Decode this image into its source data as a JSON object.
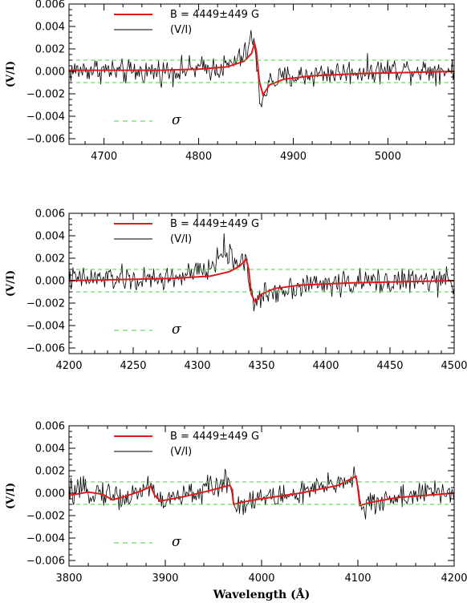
{
  "chart_data": [
    {
      "type": "line",
      "xlim": [
        4663,
        5070
      ],
      "ylim": [
        -0.0065,
        0.006
      ],
      "x_ticks": [
        4700,
        4800,
        4900,
        5000
      ],
      "x_tick_labels": [
        "4700",
        "4800",
        "4900",
        "5000"
      ],
      "y_ticks": [
        -0.006,
        -0.004,
        -0.002,
        0.0,
        0.002,
        0.004,
        0.006
      ],
      "y_tick_labels": [
        "−0.006",
        "−0.004",
        "−0.002",
        "0.000",
        "0.002",
        "0.004",
        "0.006"
      ],
      "ylabel": "(V/I)",
      "xlabel": "",
      "legend": {
        "model_label": "B = 4449±449 G",
        "observed_label": "(V/I)",
        "sigma_label": "σ"
      },
      "sigma": 0.001,
      "series": [
        {
          "name": "(V/I)",
          "color": "#000000",
          "x": [
            4663,
            4690,
            4720,
            4760,
            4800,
            4830,
            4850,
            4856,
            4859,
            4862,
            4866,
            4870,
            4876,
            4890,
            4930,
            4970,
            5020,
            5070
          ],
          "values": [
            0.0,
            0.0002,
            -0.0001,
            0.0,
            0.0002,
            0.0004,
            0.0015,
            0.0031,
            0.0024,
            -0.0005,
            -0.0029,
            -0.0018,
            -0.0009,
            -0.0006,
            -0.0002,
            0.0,
            0.0002,
            0.0001
          ]
        },
        {
          "name": "B = 4449±449 G",
          "color": "#e0191b",
          "x": [
            4663,
            4700,
            4760,
            4800,
            4830,
            4848,
            4856,
            4859,
            4861,
            4864,
            4868,
            4875,
            4890,
            4920,
            4970,
            5070
          ],
          "values": [
            0.0001,
            0.0001,
            0.0001,
            0.0002,
            0.0004,
            0.0009,
            0.0016,
            0.0025,
            0.0018,
            -0.0008,
            -0.0021,
            -0.0012,
            -0.0007,
            -0.0004,
            -0.0002,
            0.0
          ]
        }
      ]
    },
    {
      "type": "line",
      "xlim": [
        4200,
        4500
      ],
      "ylim": [
        -0.0065,
        0.006
      ],
      "x_ticks": [
        4200,
        4250,
        4300,
        4350,
        4400,
        4450,
        4500
      ],
      "x_tick_labels": [
        "4200",
        "4250",
        "4300",
        "4350",
        "4400",
        "4450",
        "4500"
      ],
      "y_ticks": [
        -0.006,
        -0.004,
        -0.002,
        0.0,
        0.002,
        0.004,
        0.006
      ],
      "y_tick_labels": [
        "−0.006",
        "−0.004",
        "−0.002",
        "0.000",
        "0.002",
        "0.004",
        "0.006"
      ],
      "ylabel": "(V/I)",
      "xlabel": "",
      "legend": {
        "model_label": "B = 4449±449 G",
        "observed_label": "(V/I)",
        "sigma_label": "σ"
      },
      "sigma": 0.001,
      "series": [
        {
          "name": "(V/I)",
          "color": "#000000",
          "x": [
            4200,
            4230,
            4260,
            4290,
            4310,
            4320,
            4330,
            4336,
            4339,
            4342,
            4345,
            4350,
            4360,
            4380,
            4420,
            4460,
            4500
          ],
          "values": [
            0.0001,
            0.0002,
            0.0,
            0.0004,
            0.001,
            0.0028,
            0.0016,
            0.0021,
            0.0012,
            -0.0011,
            -0.0024,
            -0.0014,
            -0.0009,
            -0.0004,
            -0.0002,
            0.0,
            -0.0001
          ]
        },
        {
          "name": "B = 4449±449 G",
          "color": "#e0191b",
          "x": [
            4200,
            4240,
            4280,
            4310,
            4325,
            4333,
            4338,
            4340,
            4342,
            4345,
            4350,
            4360,
            4380,
            4420,
            4460,
            4500
          ],
          "values": [
            0.0,
            0.0001,
            0.0002,
            0.0004,
            0.0008,
            0.0013,
            0.0019,
            0.001,
            -0.0012,
            -0.0019,
            -0.0012,
            -0.0007,
            -0.0004,
            -0.0002,
            -0.0001,
            0.0
          ]
        }
      ]
    },
    {
      "type": "line",
      "xlim": [
        3800,
        4200
      ],
      "ylim": [
        -0.0065,
        0.006
      ],
      "x_ticks": [
        3800,
        3900,
        4000,
        4100,
        4200
      ],
      "x_tick_labels": [
        "3800",
        "3900",
        "4000",
        "4100",
        "4200"
      ],
      "y_ticks": [
        -0.006,
        -0.004,
        -0.002,
        0.0,
        0.002,
        0.004,
        0.006
      ],
      "y_tick_labels": [
        "−0.006",
        "−0.004",
        "−0.002",
        "0.000",
        "0.002",
        "0.004",
        "0.006"
      ],
      "ylabel": "(V/I)",
      "xlabel": "Wavelength (Å)",
      "legend": {
        "model_label": "B = 4449±449 G",
        "observed_label": "(V/I)",
        "sigma_label": "σ"
      },
      "sigma": 0.001,
      "series": [
        {
          "name": "(V/I)",
          "color": "#000000",
          "x": [
            3800,
            3830,
            3860,
            3885,
            3895,
            3930,
            3960,
            3968,
            3972,
            3990,
            4030,
            4070,
            4098,
            4101,
            4105,
            4130,
            4170,
            4200
          ],
          "values": [
            0.0,
            0.0002,
            -0.0005,
            0.0008,
            -0.0008,
            0.0,
            0.0008,
            0.0014,
            -0.0013,
            -0.0005,
            -0.0002,
            0.0006,
            0.0016,
            -0.0004,
            -0.0014,
            -0.0005,
            0.0,
            0.0001
          ]
        },
        {
          "name": "B = 4449±449 G",
          "color": "#e0191b",
          "x": [
            3800,
            3820,
            3835,
            3845,
            3858,
            3875,
            3885,
            3889,
            3895,
            3920,
            3945,
            3967,
            3969,
            3971,
            3980,
            4000,
            4040,
            4080,
            4098,
            4100,
            4102,
            4115,
            4140,
            4170,
            4200
          ],
          "values": [
            -0.0002,
            0.0001,
            -0.0001,
            -0.0006,
            -0.0003,
            0.0002,
            0.0006,
            -0.0002,
            -0.0007,
            -0.0003,
            0.0002,
            0.0007,
            0.0004,
            -0.001,
            -0.0008,
            -0.0005,
            0.0,
            0.0007,
            0.0015,
            0.0005,
            -0.0011,
            -0.0008,
            -0.0004,
            -0.0002,
            0.0
          ]
        }
      ]
    }
  ]
}
